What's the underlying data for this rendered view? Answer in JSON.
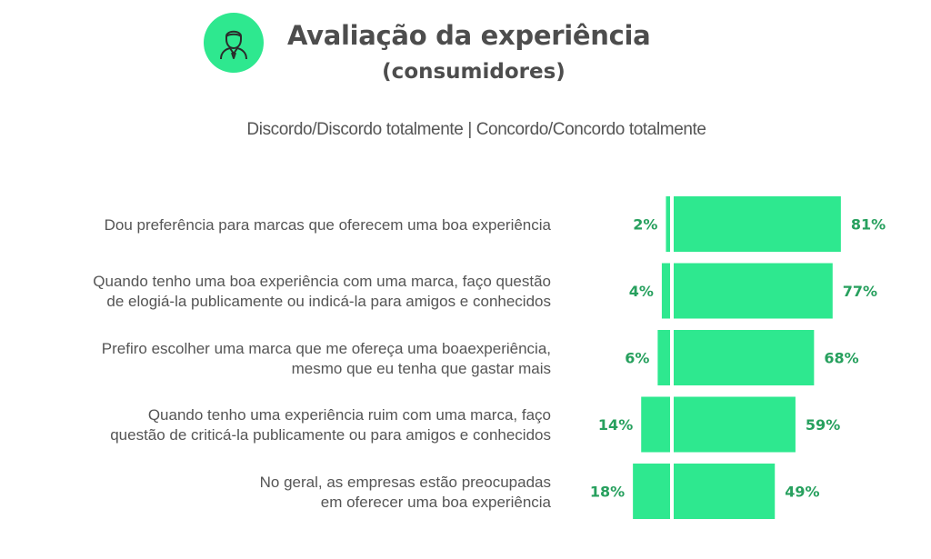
{
  "header": {
    "title": "Avaliação da experiência",
    "subtitle": "(consumidores)",
    "icon": "person-icon"
  },
  "legend": {
    "text": "Discordo/Discordo totalmente | Concordo/Concordo totalmente"
  },
  "colors": {
    "bar": "#2ee88f",
    "value_text": "#27a05e",
    "title_text": "#4d4d4d"
  },
  "chart_data": {
    "type": "bar",
    "orientation": "diverging-horizontal",
    "categories": [
      "Dou preferência para marcas que oferecem uma boa experiência",
      "Quando tenho uma boa experiência com uma marca, faço questão de elogiá-la publicamente ou indicá-la para amigos e conhecidos",
      "Prefiro escolher uma marca que me ofereça uma boaexperiência, mesmo que eu tenha que gastar mais",
      "Quando tenho uma experiência ruim com uma marca, faço questão de criticá-la publicamente ou para amigos e conhecidos",
      "No geral, as empresas estão preocupadas em oferecer uma boa experiência"
    ],
    "category_lines": [
      [
        "Dou preferência para marcas que oferecem uma boa experiência"
      ],
      [
        "Quando tenho uma boa experiência com uma marca, faço questão",
        "de elogiá-la publicamente ou indicá-la para amigos e conhecidos"
      ],
      [
        "Prefiro escolher uma marca que me ofereça uma boaexperiência,",
        "mesmo que eu tenha que gastar mais"
      ],
      [
        "Quando tenho uma experiência ruim com uma marca, faço",
        "questão de criticá-la publicamente ou para amigos e conhecidos"
      ],
      [
        "No geral, as empresas estão preocupadas",
        "em oferecer uma boa experiência"
      ]
    ],
    "series": [
      {
        "name": "Discordo/Discordo totalmente",
        "values": [
          2,
          4,
          6,
          14,
          18
        ],
        "labels": [
          "2%",
          "4%",
          "6%",
          "14%",
          "18%"
        ]
      },
      {
        "name": "Concordo/Concordo totalmente",
        "values": [
          81,
          77,
          68,
          59,
          49
        ],
        "labels": [
          "81%",
          "77%",
          "68%",
          "59%",
          "49%"
        ]
      }
    ],
    "unit": "%",
    "grid": false
  }
}
